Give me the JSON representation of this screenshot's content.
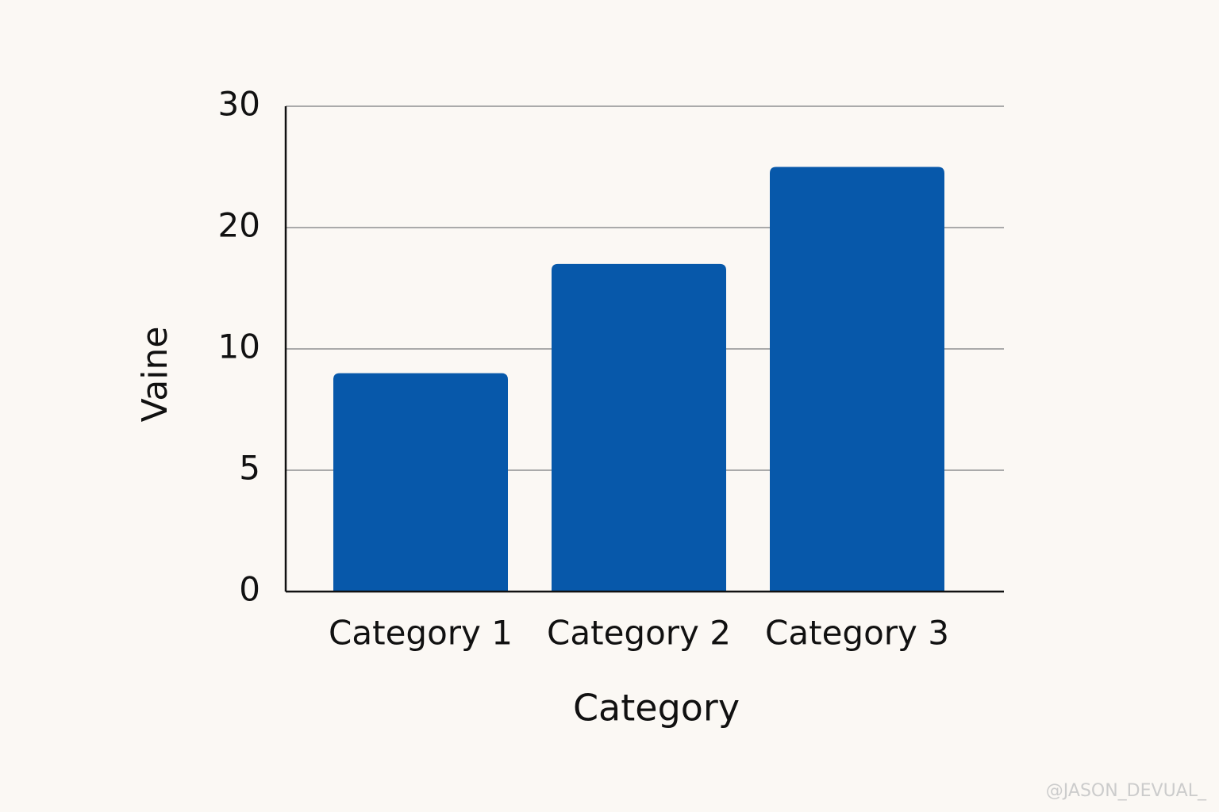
{
  "chart_data": {
    "type": "bar",
    "x_label": "Category",
    "y_label": "Vaine",
    "categories": [
      "Category 1",
      "Category 2",
      "Category 3"
    ],
    "values": [
      9,
      17,
      25
    ],
    "color": "#0758aa",
    "ylim": [
      0,
      30
    ],
    "yticks": [
      0,
      5,
      10,
      20,
      30
    ],
    "grid": true
  },
  "watermark": "@JASON_DEVUAL_"
}
